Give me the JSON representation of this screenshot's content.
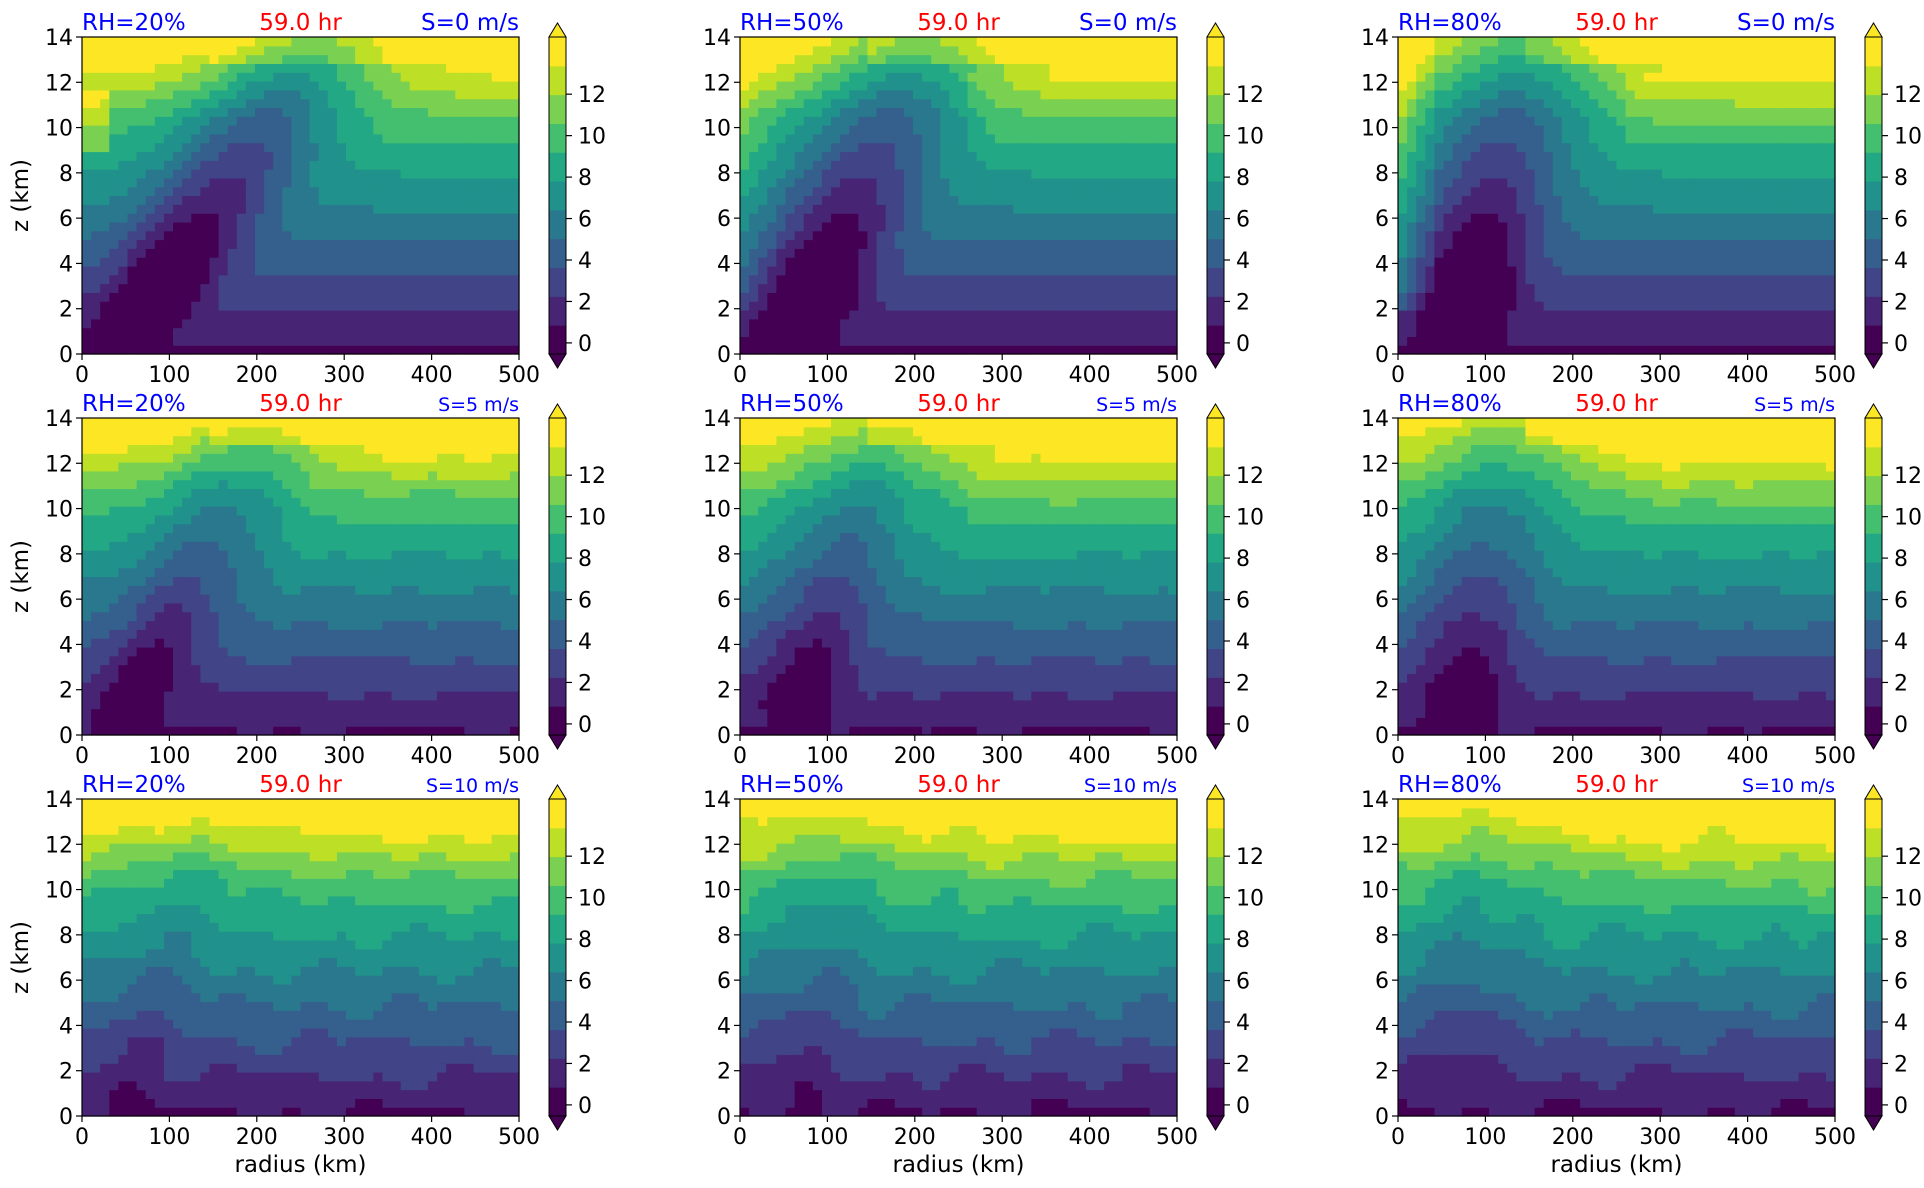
{
  "figure": {
    "rows": 3,
    "cols": 3,
    "ylabel": "z (km)",
    "xlabel": "radius (km)",
    "x_ticks": [
      "0",
      "100",
      "200",
      "300",
      "400",
      "500"
    ],
    "y_ticks": [
      "0",
      "2",
      "4",
      "6",
      "8",
      "10",
      "12",
      "14"
    ],
    "colorbar_ticks": [
      "0",
      "2",
      "4",
      "6",
      "8",
      "10",
      "12"
    ],
    "colors": {
      "title_left": "#0000ff",
      "title_center": "#ff0000",
      "title_right": "#0000ff",
      "palette": [
        "#440154",
        "#482475",
        "#414487",
        "#355f8d",
        "#2a788e",
        "#21918c",
        "#22a884",
        "#44bf70",
        "#7ad151",
        "#bddf26",
        "#fde725"
      ]
    }
  },
  "chart_data": [
    {
      "type": "heatmap",
      "row": 0,
      "col": 0,
      "title_left": "RH=20%",
      "title_center": "59.0 hr",
      "title_right": "S=0 m/s",
      "xlim": [
        0,
        500
      ],
      "ylim": [
        0,
        14
      ],
      "clim": [
        0,
        13
      ],
      "colorbar_extend": "both"
    },
    {
      "type": "heatmap",
      "row": 0,
      "col": 1,
      "title_left": "RH=50%",
      "title_center": "59.0 hr",
      "title_right": "S=0 m/s",
      "xlim": [
        0,
        500
      ],
      "ylim": [
        0,
        14
      ],
      "clim": [
        0,
        13
      ],
      "colorbar_extend": "both"
    },
    {
      "type": "heatmap",
      "row": 0,
      "col": 2,
      "title_left": "RH=80%",
      "title_center": "59.0 hr",
      "title_right": "S=0 m/s",
      "xlim": [
        0,
        500
      ],
      "ylim": [
        0,
        14
      ],
      "clim": [
        0,
        13
      ],
      "colorbar_extend": "both"
    },
    {
      "type": "heatmap",
      "row": 1,
      "col": 0,
      "title_left": "RH=20%",
      "title_center": "59.0 hr",
      "title_right": "S=5 m/s",
      "xlim": [
        0,
        500
      ],
      "ylim": [
        0,
        14
      ],
      "clim": [
        0,
        13
      ],
      "colorbar_extend": "both"
    },
    {
      "type": "heatmap",
      "row": 1,
      "col": 1,
      "title_left": "RH=50%",
      "title_center": "59.0 hr",
      "title_right": "S=5 m/s",
      "xlim": [
        0,
        500
      ],
      "ylim": [
        0,
        14
      ],
      "clim": [
        0,
        13
      ],
      "colorbar_extend": "both"
    },
    {
      "type": "heatmap",
      "row": 1,
      "col": 2,
      "title_left": "RH=80%",
      "title_center": "59.0 hr",
      "title_right": "S=5 m/s",
      "xlim": [
        0,
        500
      ],
      "ylim": [
        0,
        14
      ],
      "clim": [
        0,
        13
      ],
      "colorbar_extend": "both"
    },
    {
      "type": "heatmap",
      "row": 2,
      "col": 0,
      "title_left": "RH=20%",
      "title_center": "59.0 hr",
      "title_right": "S=10 m/s",
      "xlim": [
        0,
        500
      ],
      "ylim": [
        0,
        14
      ],
      "clim": [
        0,
        13
      ],
      "colorbar_extend": "both"
    },
    {
      "type": "heatmap",
      "row": 2,
      "col": 1,
      "title_left": "RH=50%",
      "title_center": "59.0 hr",
      "title_right": "S=10 m/s",
      "xlim": [
        0,
        500
      ],
      "ylim": [
        0,
        14
      ],
      "clim": [
        0,
        13
      ],
      "colorbar_extend": "both"
    },
    {
      "type": "heatmap",
      "row": 2,
      "col": 2,
      "title_left": "RH=80%",
      "title_center": "59.0 hr",
      "title_right": "S=10 m/s",
      "xlim": [
        0,
        500
      ],
      "ylim": [
        0,
        14
      ],
      "clim": [
        0,
        13
      ],
      "colorbar_extend": "both"
    }
  ]
}
